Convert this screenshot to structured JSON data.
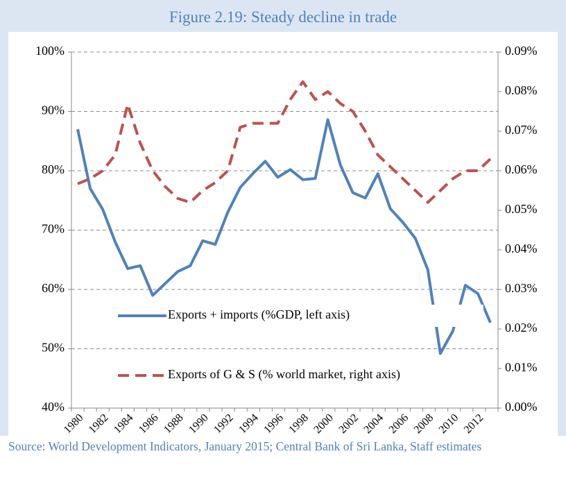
{
  "chart_data": {
    "type": "line",
    "title": "Figure 2.19: Steady decline in trade",
    "source": "Source: World Development Indicators, January 2015; Central Bank of Sri Lanka, Staff estimates",
    "categories": [
      "1980",
      null,
      "1982",
      null,
      "1984",
      null,
      "1986",
      null,
      "1988",
      null,
      "1990",
      null,
      "1992",
      null,
      "1994",
      null,
      "1996",
      null,
      "1998",
      null,
      "2000",
      null,
      "2002",
      null,
      "2004",
      null,
      "2006",
      null,
      "2008",
      null,
      "2010",
      null,
      "2012",
      null
    ],
    "series": [
      {
        "name": "Exports + imports (%GDP, left axis)",
        "color": "#4f81bd",
        "dashed": false,
        "axis": "y",
        "values": [
          87,
          77,
          73.5,
          68,
          63.5,
          64,
          59,
          61,
          63,
          64,
          68.2,
          67.6,
          73,
          77.2,
          79.5,
          81.6,
          78.9,
          80.2,
          78.5,
          78.7,
          88.6,
          81,
          76.3,
          75.4,
          79.5,
          73.6,
          71.3,
          68.6,
          63.3,
          49.2,
          53,
          60.7,
          59.3,
          54.4
        ]
      },
      {
        "name": "Exports of G & S (% world market, right axis)",
        "color": "#c0504d",
        "dashed": true,
        "axis": "y2",
        "values": [
          0.0567,
          0.058,
          0.06,
          0.064,
          0.0768,
          0.067,
          0.06,
          0.056,
          0.053,
          0.052,
          0.055,
          0.057,
          0.06,
          0.071,
          0.072,
          0.072,
          0.072,
          0.078,
          0.0825,
          0.078,
          0.08,
          0.077,
          0.075,
          0.07,
          0.064,
          0.061,
          0.058,
          0.055,
          0.052,
          0.055,
          0.058,
          0.06,
          0.06,
          0.063
        ]
      }
    ],
    "ylim": [
      40,
      100
    ],
    "yticks": [
      {
        "value": 40,
        "label": "40%"
      },
      {
        "value": 50,
        "label": "50%"
      },
      {
        "value": 60,
        "label": "60%"
      },
      {
        "value": 70,
        "label": "70%"
      },
      {
        "value": 80,
        "label": "80%"
      },
      {
        "value": 90,
        "label": "90%"
      },
      {
        "value": 100,
        "label": "100%"
      }
    ],
    "y2lim": [
      0,
      0.09
    ],
    "y2ticks": [
      {
        "value": 0,
        "label": "0.00%"
      },
      {
        "value": 0.01,
        "label": "0.01%"
      },
      {
        "value": 0.02,
        "label": "0.02%"
      },
      {
        "value": 0.03,
        "label": "0.03%"
      },
      {
        "value": 0.04,
        "label": "0.04%"
      },
      {
        "value": 0.05,
        "label": "0.05%"
      },
      {
        "value": 0.06,
        "label": "0.06%"
      },
      {
        "value": 0.07,
        "label": "0.07%"
      },
      {
        "value": 0.08,
        "label": "0.08%"
      },
      {
        "value": 0.09,
        "label": "0.09%"
      }
    ],
    "grid": true
  }
}
